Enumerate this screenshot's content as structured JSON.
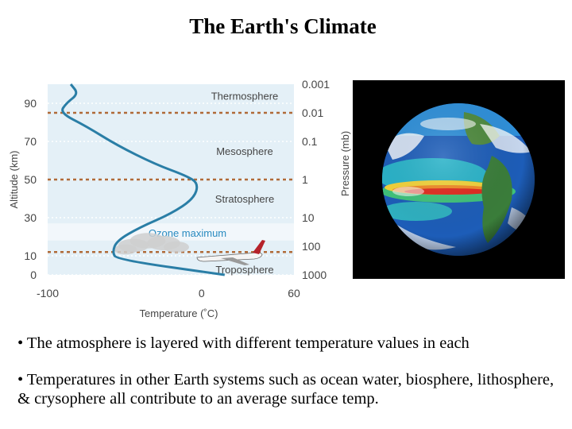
{
  "slide": {
    "title": "The Earth's Climate"
  },
  "chart_data": {
    "type": "line",
    "title": "",
    "xlabel": "Temperature (˚C)",
    "ylabel": "Altitude (km)",
    "y2label": "Pressure (mb)",
    "xlim": [
      -100,
      60
    ],
    "ylim": [
      0,
      100
    ],
    "x_ticks": [
      "-100",
      "0",
      "60"
    ],
    "y_ticks": [
      "0",
      "10",
      "30",
      "50",
      "70",
      "90"
    ],
    "pressure_ticks": [
      "0.001",
      "0.01",
      "0.1",
      "1",
      "10",
      "100",
      "1000"
    ],
    "layers": [
      "Thermosphere",
      "Mesosphere",
      "Stratosphere",
      "Ozone maximum",
      "Troposphere"
    ],
    "series": [
      {
        "name": "",
        "x": [
          15,
          -55,
          -58,
          -55,
          -40,
          -20,
          -5,
          -2,
          -10,
          -30,
          -55,
          -75,
          -92,
          -88,
          -80,
          -85
        ],
        "y": [
          0,
          8,
          12,
          18,
          25,
          32,
          40,
          48,
          52,
          58,
          68,
          78,
          85,
          90,
          95,
          100
        ]
      }
    ],
    "colors": {
      "curve": "#2a7ea6",
      "band": "#e4f0f7",
      "dashed": "#b06a38",
      "text": "#454545",
      "ozone": "#2a8bc0"
    }
  },
  "bullets": [
    "• The atmosphere is layered with different temperature values in each",
    "• Temperatures in other Earth systems such as ocean water, biosphere, lithosphere, & crysophere  all contribute to an average surface temp."
  ],
  "globe": {
    "icon": "earth-satellite-image"
  }
}
